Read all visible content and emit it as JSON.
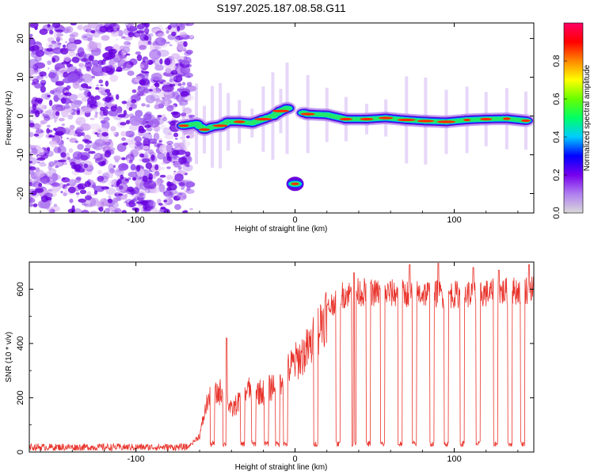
{
  "title": "S197.2025.187.08.58.G11",
  "chart_data": [
    {
      "type": "heatmap",
      "name": "spectrogram",
      "xlabel": "Height of straight line (km)",
      "ylabel": "Frequency (Hz)",
      "xlim": [
        -167,
        150
      ],
      "ylim": [
        -25,
        24
      ],
      "x_ticks": [
        -100,
        0,
        100
      ],
      "y_ticks": [
        -20,
        -10,
        0,
        10,
        20
      ],
      "noise_region_x": [
        -167,
        -67
      ],
      "ridge": [
        {
          "x": -70,
          "y": -2.5
        },
        {
          "x": -62,
          "y": -2.0
        },
        {
          "x": -57,
          "y": -3.5
        },
        {
          "x": -52,
          "y": -2.8
        },
        {
          "x": -47,
          "y": -2.5
        },
        {
          "x": -42,
          "y": -1.5
        },
        {
          "x": -35,
          "y": -1.5
        },
        {
          "x": -27,
          "y": -1.8
        },
        {
          "x": -20,
          "y": -0.8
        },
        {
          "x": -14,
          "y": 0.0
        },
        {
          "x": -9,
          "y": 1.3
        },
        {
          "x": -5,
          "y": 2.0
        },
        {
          "x": 8,
          "y": 0.5
        },
        {
          "x": 20,
          "y": 0.3
        },
        {
          "x": 32,
          "y": -0.8
        },
        {
          "x": 45,
          "y": -0.8
        },
        {
          "x": 57,
          "y": -0.5
        },
        {
          "x": 70,
          "y": -1.0
        },
        {
          "x": 82,
          "y": -1.3
        },
        {
          "x": 95,
          "y": -1.5
        },
        {
          "x": 108,
          "y": -1.0
        },
        {
          "x": 120,
          "y": -0.8
        },
        {
          "x": 133,
          "y": -0.7
        },
        {
          "x": 145,
          "y": -1.2
        }
      ],
      "isolated_blob": {
        "x": 0,
        "y": -17.5
      },
      "colorbar": {
        "label": "Normalized spectral amplitude",
        "range": [
          0,
          1
        ],
        "ticks": [
          "0.0",
          "0.2",
          "0.4",
          "0.6",
          "0.8"
        ],
        "colors": [
          "#d9d9d9",
          "#b07ff0",
          "#7700ee",
          "#0000ff",
          "#00ccff",
          "#00ff66",
          "#66ff00",
          "#ffff00",
          "#ff8800",
          "#ff0000",
          "#ff0066"
        ]
      }
    },
    {
      "type": "line",
      "name": "snr",
      "xlabel": "Height of straight line (km)",
      "ylabel": "SNR (10 * v/v)",
      "xlim": [
        -167,
        150
      ],
      "ylim": [
        0,
        700
      ],
      "x_ticks": [
        -100,
        0,
        100
      ],
      "y_ticks": [
        0,
        200,
        400,
        600
      ],
      "color": "#e8322a",
      "baseline_level": 18,
      "rise_segments": [
        {
          "x": -167,
          "y": 18
        },
        {
          "x": -67,
          "y": 20
        },
        {
          "x": -60,
          "y": 60
        },
        {
          "x": -55,
          "y": 190
        },
        {
          "x": -45,
          "y": 230
        },
        {
          "x": -40,
          "y": 150
        },
        {
          "x": -30,
          "y": 230
        },
        {
          "x": -20,
          "y": 220
        },
        {
          "x": -10,
          "y": 260
        },
        {
          "x": -5,
          "y": 300
        },
        {
          "x": 0,
          "y": 330
        },
        {
          "x": 5,
          "y": 360
        },
        {
          "x": 10,
          "y": 390
        },
        {
          "x": 15,
          "y": 460
        },
        {
          "x": 20,
          "y": 520
        },
        {
          "x": 25,
          "y": 560
        },
        {
          "x": 30,
          "y": 580
        },
        {
          "x": 40,
          "y": 590
        },
        {
          "x": 60,
          "y": 585
        },
        {
          "x": 80,
          "y": 585
        },
        {
          "x": 100,
          "y": 580
        },
        {
          "x": 120,
          "y": 585
        },
        {
          "x": 150,
          "y": 600
        }
      ],
      "dropouts_x": [
        -52,
        -44,
        -33,
        -26,
        -18,
        -11,
        -6,
        13,
        27,
        37,
        46,
        55,
        66,
        75,
        86,
        95,
        105,
        115,
        126,
        135,
        143
      ],
      "dropout_level": 20,
      "spikes": [
        {
          "x": -43,
          "y": 420
        },
        {
          "x": 37,
          "y": 660
        },
        {
          "x": 72,
          "y": 690
        },
        {
          "x": 90,
          "y": 695
        },
        {
          "x": 112,
          "y": 680
        },
        {
          "x": 128,
          "y": 670
        },
        {
          "x": 147,
          "y": 690
        }
      ]
    }
  ]
}
